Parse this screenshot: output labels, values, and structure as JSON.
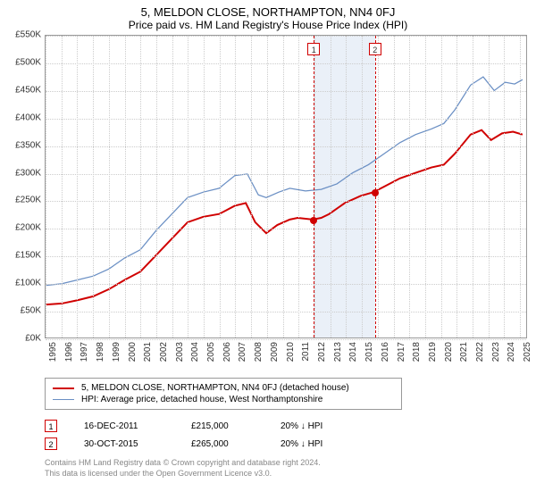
{
  "title": "5, MELDON CLOSE, NORTHAMPTON, NN4 0FJ",
  "subtitle": "Price paid vs. HM Land Registry's House Price Index (HPI)",
  "chart": {
    "type": "line",
    "x_years": [
      1995,
      1996,
      1997,
      1998,
      1999,
      2000,
      2001,
      2002,
      2003,
      2004,
      2005,
      2006,
      2007,
      2008,
      2009,
      2010,
      2011,
      2012,
      2013,
      2014,
      2015,
      2016,
      2017,
      2018,
      2019,
      2020,
      2021,
      2022,
      2023,
      2024,
      2025
    ],
    "xlim": [
      1995,
      2025.5
    ],
    "ylim": [
      0,
      550000
    ],
    "ytick_step": 50000,
    "ytick_prefix": "£",
    "ytick_suffix": "K",
    "grid_color": "#cccccc",
    "background": "#ffffff",
    "plot_band": {
      "from": 2011.96,
      "to": 2015.83,
      "color": "#eaf0f8"
    },
    "sale_lines": [
      {
        "x": 2011.96,
        "label": "1",
        "color": "#d00000"
      },
      {
        "x": 2015.83,
        "label": "2",
        "color": "#d00000"
      }
    ],
    "series": [
      {
        "name": "price_paid",
        "label": "5, MELDON CLOSE, NORTHAMPTON, NN4 0FJ (detached house)",
        "color": "#d00000",
        "width": 2,
        "points": [
          [
            1995,
            60000
          ],
          [
            1996,
            62000
          ],
          [
            1997,
            68000
          ],
          [
            1998,
            75000
          ],
          [
            1999,
            88000
          ],
          [
            2000,
            105000
          ],
          [
            2001,
            120000
          ],
          [
            2002,
            150000
          ],
          [
            2003,
            180000
          ],
          [
            2004,
            210000
          ],
          [
            2005,
            220000
          ],
          [
            2006,
            225000
          ],
          [
            2007,
            240000
          ],
          [
            2007.7,
            245000
          ],
          [
            2008.3,
            210000
          ],
          [
            2009,
            190000
          ],
          [
            2009.7,
            205000
          ],
          [
            2010.5,
            215000
          ],
          [
            2011,
            218000
          ],
          [
            2011.96,
            215000
          ],
          [
            2012.5,
            218000
          ],
          [
            2013,
            225000
          ],
          [
            2014,
            245000
          ],
          [
            2015,
            258000
          ],
          [
            2015.83,
            265000
          ],
          [
            2016.5,
            275000
          ],
          [
            2017.5,
            290000
          ],
          [
            2018.5,
            300000
          ],
          [
            2019.5,
            310000
          ],
          [
            2020.3,
            315000
          ],
          [
            2021,
            335000
          ],
          [
            2022,
            370000
          ],
          [
            2022.7,
            378000
          ],
          [
            2023.3,
            360000
          ],
          [
            2024,
            372000
          ],
          [
            2024.7,
            375000
          ],
          [
            2025.3,
            370000
          ]
        ],
        "markers": [
          {
            "x": 2011.96,
            "y": 215000
          },
          {
            "x": 2015.83,
            "y": 265000
          }
        ]
      },
      {
        "name": "hpi",
        "label": "HPI: Average price, detached house, West Northamptonshire",
        "color": "#6a8fc4",
        "width": 1.25,
        "points": [
          [
            1995,
            95000
          ],
          [
            1996,
            98000
          ],
          [
            1997,
            105000
          ],
          [
            1998,
            112000
          ],
          [
            1999,
            125000
          ],
          [
            2000,
            145000
          ],
          [
            2001,
            160000
          ],
          [
            2002,
            195000
          ],
          [
            2003,
            225000
          ],
          [
            2004,
            255000
          ],
          [
            2005,
            265000
          ],
          [
            2006,
            272000
          ],
          [
            2007,
            295000
          ],
          [
            2007.8,
            298000
          ],
          [
            2008.5,
            260000
          ],
          [
            2009,
            255000
          ],
          [
            2009.8,
            265000
          ],
          [
            2010.5,
            272000
          ],
          [
            2011.5,
            267000
          ],
          [
            2012.5,
            270000
          ],
          [
            2013.5,
            280000
          ],
          [
            2014.5,
            300000
          ],
          [
            2015.5,
            315000
          ],
          [
            2016.5,
            335000
          ],
          [
            2017.5,
            355000
          ],
          [
            2018.5,
            370000
          ],
          [
            2019.5,
            380000
          ],
          [
            2020.3,
            390000
          ],
          [
            2021,
            415000
          ],
          [
            2022,
            460000
          ],
          [
            2022.8,
            475000
          ],
          [
            2023.5,
            450000
          ],
          [
            2024.2,
            465000
          ],
          [
            2024.8,
            462000
          ],
          [
            2025.3,
            470000
          ]
        ]
      }
    ]
  },
  "sales": [
    {
      "num": "1",
      "date": "16-DEC-2011",
      "price": "£215,000",
      "pct": "20% ↓ HPI",
      "color": "#d00000"
    },
    {
      "num": "2",
      "date": "30-OCT-2015",
      "price": "£265,000",
      "pct": "20% ↓ HPI",
      "color": "#d00000"
    }
  ],
  "footer": [
    "Contains HM Land Registry data © Crown copyright and database right 2024.",
    "This data is licensed under the Open Government Licence v3.0."
  ]
}
